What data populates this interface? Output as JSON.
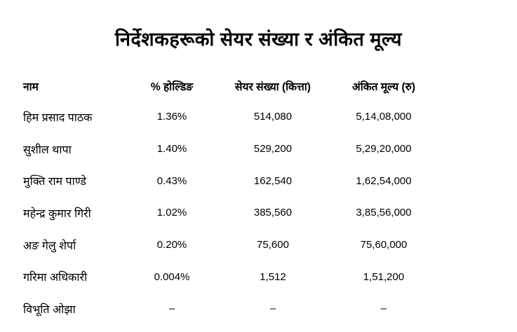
{
  "page": {
    "title": "निर्देशकहरूको सेयर संख्या र अंकित मूल्य"
  },
  "table": {
    "headers": {
      "name": "नाम",
      "holding": "% होल्डिङ",
      "shares": "सेयर संख्या (कित्ता)",
      "value": "अंकित मूल्य (रु)"
    },
    "rows": [
      {
        "name": "हिम प्रसाद पाठक",
        "holding": "1.36%",
        "shares": "514,080",
        "value": "5,14,08,000"
      },
      {
        "name": "सुशील थापा",
        "holding": "1.40%",
        "shares": "529,200",
        "value": "5,29,20,000"
      },
      {
        "name": "मुक्ति राम पाण्डे",
        "holding": "0.43%",
        "shares": "162,540",
        "value": "1,62,54,000"
      },
      {
        "name": "महेन्द्र कुमार गिरी",
        "holding": "1.02%",
        "shares": "385,560",
        "value": "3,85,56,000"
      },
      {
        "name": "अङ गेलु शेर्पा",
        "holding": "0.20%",
        "shares": "75,600",
        "value": "75,60,000"
      },
      {
        "name": "गरिमा अधिकारी",
        "holding": "0.004%",
        "shares": "1,512",
        "value": "1,51,200"
      },
      {
        "name": "विभूति ओझा",
        "holding": "–",
        "shares": "–",
        "value": "–"
      }
    ]
  }
}
